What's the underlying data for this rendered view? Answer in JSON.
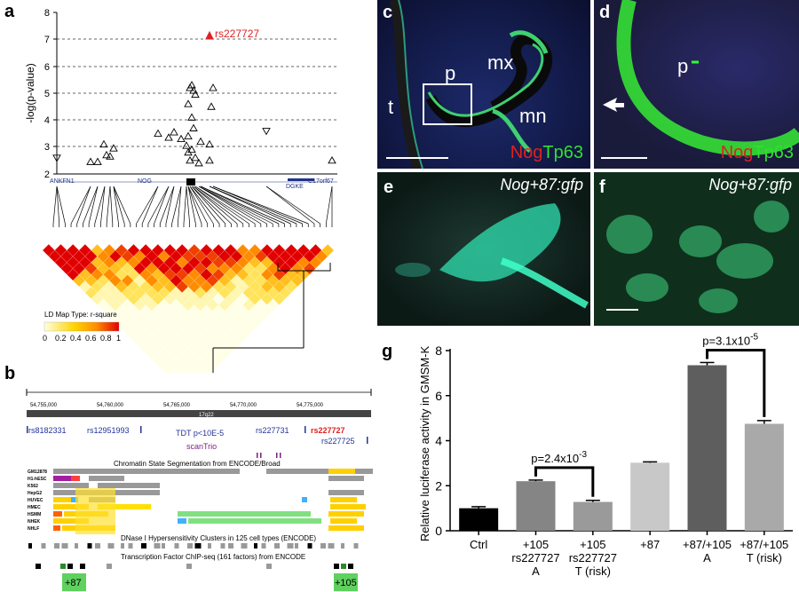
{
  "panel_labels": [
    "a",
    "b",
    "c",
    "d",
    "e",
    "f",
    "g"
  ],
  "panel_a": {
    "ylabel": "-log(p-value)",
    "yticks": [
      "2",
      "3",
      "4",
      "5",
      "6",
      "7",
      "8"
    ],
    "top_snp": "rs227727",
    "genes": [
      "ANKFN1",
      "NOG",
      "DGKE",
      "C17orf67"
    ],
    "ld_legend_title": "LD Map Type: r-square",
    "ld_legend_ticks": [
      "0",
      "0.2",
      "0.4",
      "0.6",
      "0.8",
      "1"
    ]
  },
  "panel_b": {
    "coords": [
      "54,755,000",
      "54,760,000",
      "54,765,000",
      "54,770,000",
      "54,775,000"
    ],
    "band": "17q22",
    "snps": [
      "rs8182331",
      "rs12951993",
      "rs227731",
      "rs227727",
      "rs227725"
    ],
    "tdt": "TDT p<10E-5",
    "scantrio": "scanTrio",
    "chromatin_title": "Chromatin State Segmentation from ENCODE/Broad",
    "cell_lines": [
      "GM12878",
      "H1-hESC",
      "K562",
      "HepG2",
      "HUVEC",
      "HMEC",
      "HSMM",
      "NHEK",
      "NHLF"
    ],
    "dnase_title": "DNase I Hypersensitivity Clusters in 125 cell types (ENCODE)",
    "tfbs_title": "Transcription Factor ChIP-seq (161 factors) from ENCODE",
    "enhancers": [
      "+87",
      "+105"
    ]
  },
  "panel_c": {
    "labels": [
      "t",
      "p",
      "mx",
      "mn"
    ],
    "stain1": "Nog",
    "stain2": "Tp63"
  },
  "panel_d": {
    "labels": [
      "p"
    ],
    "stain1": "Nog",
    "stain2": "Tp63"
  },
  "panel_e": {
    "label": "Nog+87:gfp"
  },
  "panel_f": {
    "label": "Nog+87:gfp"
  },
  "chart_data": {
    "type": "bar",
    "ylabel": "Relative luciferase activity in GMSM-K",
    "ylim": [
      0,
      8
    ],
    "yticks": [
      "0",
      "2",
      "4",
      "6",
      "8"
    ],
    "categories": [
      "Ctrl",
      "+105 rs227727 A",
      "+105 rs227727 T (risk)",
      "+87",
      "+87/+105 A",
      "+87/+105 T (risk)"
    ],
    "category_lines": [
      [
        "Ctrl"
      ],
      [
        "+105",
        "rs227727",
        "A"
      ],
      [
        "+105",
        "rs227727",
        "T (risk)"
      ],
      [
        "+87"
      ],
      [
        "+87/+105",
        "A"
      ],
      [
        "+87/+105",
        "T (risk)"
      ]
    ],
    "values": [
      1.0,
      2.2,
      1.28,
      3.02,
      7.35,
      4.75
    ],
    "errors": [
      0.07,
      0.05,
      0.07,
      0.04,
      0.12,
      0.14
    ],
    "colors": [
      "#000000",
      "#858585",
      "#9a9a9a",
      "#c8c8c8",
      "#5e5e5e",
      "#a9a9a9"
    ],
    "annotations": [
      {
        "base": "p=2.4x10",
        "exp": "-3",
        "from": 1,
        "to": 2
      },
      {
        "base": "p=3.1x10",
        "exp": "-5",
        "from": 4,
        "to": 5
      }
    ]
  }
}
